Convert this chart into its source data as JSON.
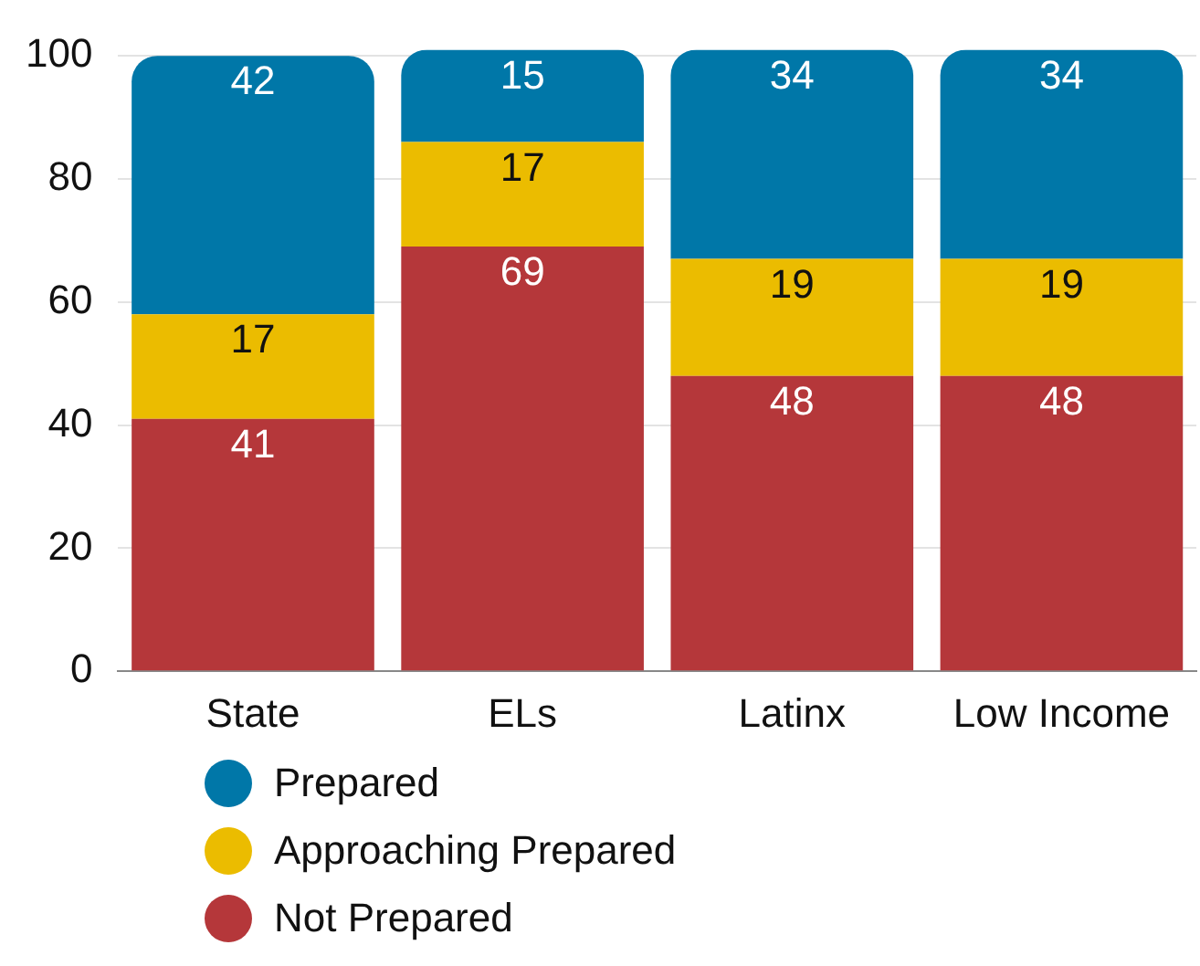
{
  "chart_data": {
    "type": "bar",
    "stacked": true,
    "categories": [
      "State",
      "ELs",
      "Latinx",
      "Low Income"
    ],
    "series": [
      {
        "name": "Not Prepared",
        "color": "#b5373a",
        "values": [
          41,
          69,
          48,
          48
        ]
      },
      {
        "name": "Approaching Prepared",
        "color": "#ebbc00",
        "values": [
          17,
          17,
          19,
          19
        ]
      },
      {
        "name": "Prepared",
        "color": "#0077a8",
        "values": [
          42,
          15,
          34,
          34
        ]
      }
    ],
    "ylim": [
      0,
      101
    ],
    "yticks": [
      0,
      20,
      40,
      60,
      80,
      100
    ],
    "grid": "y",
    "legend": "bottom",
    "marker": "circle",
    "data_labels": true
  }
}
